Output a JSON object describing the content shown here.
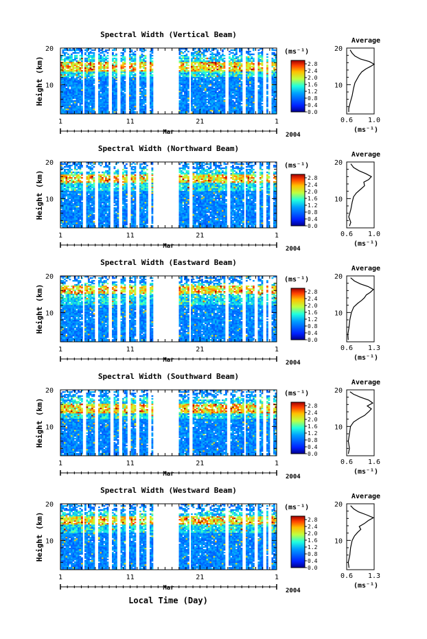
{
  "chart_data": [
    {
      "type": "heatmap",
      "title": "Spectral Width (Vertical Beam)",
      "xlabel": "Mar",
      "ylabel": "Height (km)",
      "xlim": [
        1,
        32
      ],
      "ylim": [
        2,
        20
      ],
      "x_ticks": [
        "1",
        "11",
        "21",
        "1"
      ],
      "y_ticks": [
        "20",
        "10"
      ],
      "year": "2004",
      "colorbar": {
        "unit": "(ms⁻¹)",
        "ticks": [
          "2.8",
          "2.4",
          "2.0",
          "1.6",
          "1.2",
          "0.8",
          "0.4",
          "0.0"
        ],
        "range": [
          0,
          3.0
        ]
      },
      "data_gaps_days": [
        [
          14.2,
          18.0
        ]
      ],
      "average_profile": {
        "title": "Average",
        "xlabel": "(ms⁻¹)",
        "xlim": [
          0.6,
          1.0
        ],
        "x_ticks": [
          "0.6",
          "1.0"
        ],
        "y_ticks": [
          "20",
          "10"
        ],
        "points": [
          [
            0.63,
            2.5
          ],
          [
            0.63,
            3.5
          ],
          [
            0.65,
            5
          ],
          [
            0.68,
            7
          ],
          [
            0.7,
            9
          ],
          [
            0.72,
            10.5
          ],
          [
            0.75,
            11.5
          ],
          [
            0.78,
            12.5
          ],
          [
            0.82,
            13.5
          ],
          [
            0.88,
            14.3
          ],
          [
            0.95,
            15
          ],
          [
            1.0,
            15.6
          ],
          [
            0.93,
            16.3
          ],
          [
            0.8,
            17
          ],
          [
            0.72,
            17.8
          ],
          [
            0.68,
            18.6
          ],
          [
            0.65,
            19.5
          ]
        ]
      }
    },
    {
      "type": "heatmap",
      "title": "Spectral Width (Northward Beam)",
      "xlabel": "Mar",
      "ylabel": "Height (km)",
      "xlim": [
        1,
        32
      ],
      "ylim": [
        2,
        20
      ],
      "x_ticks": [
        "1",
        "11",
        "21",
        "1"
      ],
      "y_ticks": [
        "20",
        "10"
      ],
      "year": "2004",
      "colorbar": {
        "unit": "(ms⁻¹)",
        "ticks": [
          "2.8",
          "2.4",
          "2.0",
          "1.6",
          "1.2",
          "0.8",
          "0.4",
          "0.0"
        ],
        "range": [
          0,
          3.0
        ]
      },
      "data_gaps_days": [
        [
          14.2,
          18.0
        ]
      ],
      "average_profile": {
        "title": "Average",
        "xlabel": "(ms⁻¹)",
        "xlim": [
          0.6,
          1.0
        ],
        "x_ticks": [
          "0.6",
          "1.0"
        ],
        "y_ticks": [
          "20",
          "10"
        ],
        "points": [
          [
            0.64,
            2.5
          ],
          [
            0.66,
            3.5
          ],
          [
            0.63,
            5
          ],
          [
            0.66,
            7
          ],
          [
            0.68,
            9
          ],
          [
            0.7,
            10.5
          ],
          [
            0.74,
            11.5
          ],
          [
            0.8,
            12.5
          ],
          [
            0.86,
            13.5
          ],
          [
            0.85,
            14.5
          ],
          [
            0.92,
            15.2
          ],
          [
            0.96,
            16
          ],
          [
            0.88,
            16.8
          ],
          [
            0.78,
            17.6
          ],
          [
            0.7,
            18.5
          ],
          [
            0.66,
            19.5
          ]
        ]
      }
    },
    {
      "type": "heatmap",
      "title": "Spectral Width (Eastward Beam)",
      "xlabel": "Mar",
      "ylabel": "Height (km)",
      "xlim": [
        1,
        32
      ],
      "ylim": [
        2,
        20
      ],
      "x_ticks": [
        "1",
        "11",
        "21",
        "1"
      ],
      "y_ticks": [
        "20",
        "10"
      ],
      "year": "2004",
      "colorbar": {
        "unit": "(ms⁻¹)",
        "ticks": [
          "2.8",
          "2.4",
          "2.0",
          "1.6",
          "1.2",
          "0.8",
          "0.4",
          "0.0"
        ],
        "range": [
          0,
          3.0
        ]
      },
      "data_gaps_days": [
        [
          14.2,
          18.0
        ]
      ],
      "average_profile": {
        "title": "Average",
        "xlabel": "(ms⁻¹)",
        "xlim": [
          0.6,
          1.3
        ],
        "x_ticks": [
          "0.6",
          "1.3"
        ],
        "y_ticks": [
          "20",
          "10"
        ],
        "points": [
          [
            0.64,
            2.5
          ],
          [
            0.63,
            4
          ],
          [
            0.66,
            6
          ],
          [
            0.68,
            8
          ],
          [
            0.72,
            10
          ],
          [
            0.78,
            11.5
          ],
          [
            0.88,
            12.5
          ],
          [
            0.98,
            13.3
          ],
          [
            1.05,
            14
          ],
          [
            1.1,
            14.8
          ],
          [
            1.2,
            15.5
          ],
          [
            1.28,
            16.3
          ],
          [
            1.15,
            17.1
          ],
          [
            0.95,
            17.8
          ],
          [
            0.8,
            18.6
          ],
          [
            0.7,
            19.5
          ]
        ]
      }
    },
    {
      "type": "heatmap",
      "title": "Spectral Width (Southward Beam)",
      "xlabel": "Mar",
      "ylabel": "Height (km)",
      "xlim": [
        1,
        32
      ],
      "ylim": [
        2,
        20
      ],
      "x_ticks": [
        "1",
        "11",
        "21",
        "1"
      ],
      "y_ticks": [
        "20",
        "10"
      ],
      "year": "2004",
      "colorbar": {
        "unit": "(ms⁻¹)",
        "ticks": [
          "2.8",
          "2.4",
          "2.0",
          "1.6",
          "1.2",
          "0.8",
          "0.4",
          "0.0"
        ],
        "range": [
          0,
          3.0
        ]
      },
      "data_gaps_days": [
        [
          14.2,
          18.0
        ]
      ],
      "average_profile": {
        "title": "Average",
        "xlabel": "(ms⁻¹)",
        "xlim": [
          0.6,
          1.6
        ],
        "x_ticks": [
          "0.6",
          "1.6"
        ],
        "y_ticks": [
          "20",
          "10"
        ],
        "points": [
          [
            0.66,
            2.5
          ],
          [
            0.7,
            4
          ],
          [
            0.66,
            6
          ],
          [
            0.7,
            8
          ],
          [
            0.74,
            10
          ],
          [
            0.85,
            11.2
          ],
          [
            1.05,
            12.2
          ],
          [
            1.25,
            13
          ],
          [
            1.4,
            14
          ],
          [
            1.5,
            14.8
          ],
          [
            1.35,
            15.6
          ],
          [
            1.55,
            16.4
          ],
          [
            1.4,
            17.2
          ],
          [
            1.1,
            18
          ],
          [
            0.85,
            18.8
          ],
          [
            0.72,
            19.5
          ]
        ]
      }
    },
    {
      "type": "heatmap",
      "title": "Spectral Width (Westward Beam)",
      "xlabel": "Mar",
      "ylabel": "Height (km)",
      "xlim": [
        1,
        32
      ],
      "ylim": [
        2,
        20
      ],
      "x_ticks": [
        "1",
        "11",
        "21",
        "1"
      ],
      "y_ticks": [
        "20",
        "10"
      ],
      "year": "2004",
      "colorbar": {
        "unit": "(ms⁻¹)",
        "ticks": [
          "2.8",
          "2.4",
          "2.0",
          "1.6",
          "1.2",
          "0.8",
          "0.4",
          "0.0"
        ],
        "range": [
          0,
          3.0
        ]
      },
      "data_gaps_days": [
        [
          14.2,
          18.0
        ]
      ],
      "average_profile": {
        "title": "Average",
        "xlabel": "(ms⁻¹)",
        "xlim": [
          0.6,
          1.3
        ],
        "x_ticks": [
          "0.6",
          "1.3"
        ],
        "y_ticks": [
          "20",
          "10"
        ],
        "points": [
          [
            0.66,
            2.5
          ],
          [
            0.64,
            4
          ],
          [
            0.68,
            6
          ],
          [
            0.7,
            8
          ],
          [
            0.74,
            10
          ],
          [
            0.8,
            11.2
          ],
          [
            0.88,
            12.2
          ],
          [
            0.96,
            13
          ],
          [
            0.92,
            13.8
          ],
          [
            1.05,
            14.6
          ],
          [
            1.15,
            15.4
          ],
          [
            1.28,
            16.2
          ],
          [
            1.1,
            17
          ],
          [
            0.9,
            17.8
          ],
          [
            0.78,
            18.6
          ],
          [
            0.7,
            19.5
          ]
        ]
      }
    }
  ],
  "footer_xlabel": "Local Time (Day)"
}
